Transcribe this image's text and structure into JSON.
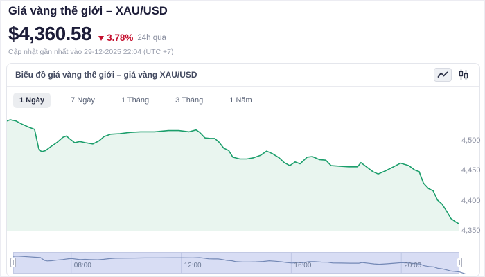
{
  "header": {
    "title": "Giá vàng thế giới – XAU/USD",
    "price": "$4,360.58",
    "change_pct": "3.78%",
    "change_direction": "down",
    "change_period": "24h qua",
    "last_updated": "Cập nhật gần nhất vào 29-12-2025 22:04 (UTC +7)",
    "change_color": "#c5102f"
  },
  "panel": {
    "title": "Biểu đồ giá vàng thế giới – giá vàng XAU/USD",
    "chart_type_buttons": [
      {
        "name": "line",
        "icon": "line-chart-icon",
        "selected": true
      },
      {
        "name": "candlestick",
        "icon": "candlestick-icon",
        "selected": false
      }
    ]
  },
  "tabs": {
    "items": [
      {
        "label": "1 Ngày",
        "selected": true
      },
      {
        "label": "7 Ngày",
        "selected": false
      },
      {
        "label": "1 Tháng",
        "selected": false
      },
      {
        "label": "3 Tháng",
        "selected": false
      },
      {
        "label": "1 Năm",
        "selected": false
      }
    ]
  },
  "chart_data": {
    "type": "area",
    "title": "Biểu đồ giá vàng thế giới – giá vàng XAU/USD",
    "series_name": "XAU/USD",
    "x_unit": "hour of day (24h clock)",
    "x_range": [
      5.89,
      22.11
    ],
    "ylim": [
      4350,
      4542
    ],
    "grid": false,
    "legend": false,
    "y_ticks": [
      {
        "value": 4500,
        "label": "4,500"
      },
      {
        "value": 4450,
        "label": "4,450"
      },
      {
        "value": 4400,
        "label": "4,400"
      },
      {
        "value": 4350,
        "label": "4,350"
      }
    ],
    "x_ticks": [
      {
        "value": 8,
        "label": "08:00"
      },
      {
        "value": 12,
        "label": "12:00"
      },
      {
        "value": 16,
        "label": "16:00"
      },
      {
        "value": 20,
        "label": "20:00"
      }
    ],
    "colors": {
      "line": "#1b9e6b",
      "fill": "#e9f5ef",
      "nav_band": "#d8ddf4",
      "nav_outline": "#c2c9e4",
      "nav_gridline": "#bfc7e4",
      "nav_line": "#7388b5",
      "nav_label": "#6b7894"
    },
    "points": [
      [
        5.89,
        4532
      ],
      [
        6.01,
        4534
      ],
      [
        6.21,
        4532
      ],
      [
        6.46,
        4526
      ],
      [
        6.71,
        4521
      ],
      [
        6.88,
        4518
      ],
      [
        7.03,
        4486
      ],
      [
        7.13,
        4481
      ],
      [
        7.28,
        4483
      ],
      [
        7.45,
        4489
      ],
      [
        7.7,
        4497
      ],
      [
        7.9,
        4505
      ],
      [
        8.02,
        4507
      ],
      [
        8.15,
        4502
      ],
      [
        8.32,
        4496
      ],
      [
        8.5,
        4498
      ],
      [
        8.7,
        4496
      ],
      [
        8.97,
        4494
      ],
      [
        9.19,
        4499
      ],
      [
        9.37,
        4506
      ],
      [
        9.61,
        4510
      ],
      [
        9.94,
        4511
      ],
      [
        10.31,
        4513
      ],
      [
        10.68,
        4514
      ],
      [
        11.18,
        4514
      ],
      [
        11.68,
        4516
      ],
      [
        12.05,
        4516
      ],
      [
        12.42,
        4514
      ],
      [
        12.67,
        4517
      ],
      [
        12.8,
        4513
      ],
      [
        12.99,
        4504
      ],
      [
        13.17,
        4503
      ],
      [
        13.34,
        4503
      ],
      [
        13.49,
        4497
      ],
      [
        13.66,
        4487
      ],
      [
        13.84,
        4483
      ],
      [
        13.99,
        4472
      ],
      [
        14.24,
        4469
      ],
      [
        14.49,
        4469
      ],
      [
        14.73,
        4471
      ],
      [
        14.98,
        4475
      ],
      [
        15.2,
        4482
      ],
      [
        15.4,
        4478
      ],
      [
        15.65,
        4471
      ],
      [
        15.83,
        4463
      ],
      [
        16.03,
        4458
      ],
      [
        16.22,
        4464
      ],
      [
        16.4,
        4461
      ],
      [
        16.65,
        4472
      ],
      [
        16.84,
        4473
      ],
      [
        17.09,
        4468
      ],
      [
        17.32,
        4467
      ],
      [
        17.51,
        4458
      ],
      [
        17.81,
        4457
      ],
      [
        18.14,
        4456
      ],
      [
        18.46,
        4456
      ],
      [
        18.58,
        4463
      ],
      [
        18.81,
        4455
      ],
      [
        19.01,
        4448
      ],
      [
        19.2,
        4444
      ],
      [
        19.45,
        4449
      ],
      [
        19.75,
        4456
      ],
      [
        20.0,
        4462
      ],
      [
        20.3,
        4458
      ],
      [
        20.5,
        4451
      ],
      [
        20.67,
        4448
      ],
      [
        20.82,
        4429
      ],
      [
        21.0,
        4420
      ],
      [
        21.17,
        4416
      ],
      [
        21.32,
        4401
      ],
      [
        21.49,
        4394
      ],
      [
        21.67,
        4381
      ],
      [
        21.81,
        4370
      ],
      [
        21.99,
        4364
      ],
      [
        22.11,
        4361
      ]
    ]
  }
}
